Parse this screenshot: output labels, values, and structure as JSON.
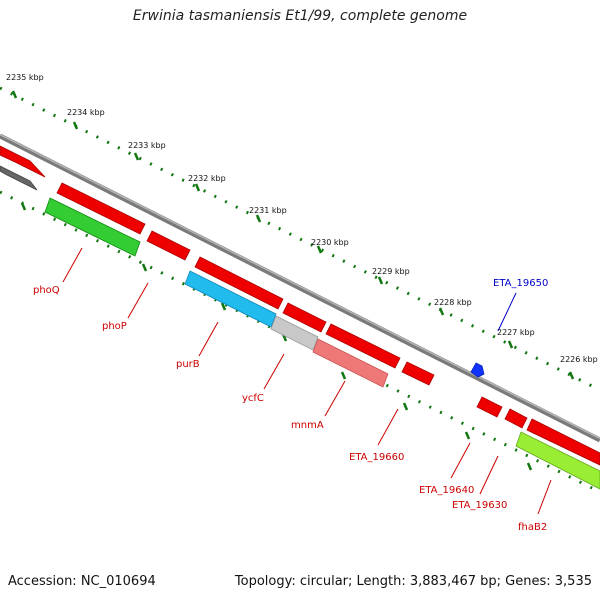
{
  "title": "Erwinia tasmaniensis Et1/99, complete genome",
  "accession": "Accession: NC_010694",
  "summary": "Topology: circular; Length: 3,883,467 bp; Genes: 3,535",
  "ticks": [
    "2235 kbp",
    "2234 kbp",
    "2233 kbp",
    "2232 kbp",
    "2231 kbp",
    "2230 kbp",
    "2229 kbp",
    "2228 kbp",
    "2227 kbp",
    "2226 kbp"
  ],
  "genes": [
    "phoQ",
    "phoP",
    "purB",
    "ycfC",
    "mnmA",
    "ETA_19660",
    "ETA_19640",
    "ETA_19630",
    "fhaB2",
    "ETA_19650"
  ],
  "colors": {
    "backbone": "#8a8a8a",
    "gene_red": "#ee0000",
    "gene_green": "#33cc33",
    "gene_cyan": "#22bbee",
    "gene_lightgray": "#c8c8c8",
    "gene_pink": "#ee7777",
    "gene_lime": "#99ee33",
    "gene_darkgray": "#666666",
    "marker_blue": "#1133ff",
    "tick_green": "#117711",
    "label_red": "#cc0000",
    "label_blue": "#0000cc"
  }
}
